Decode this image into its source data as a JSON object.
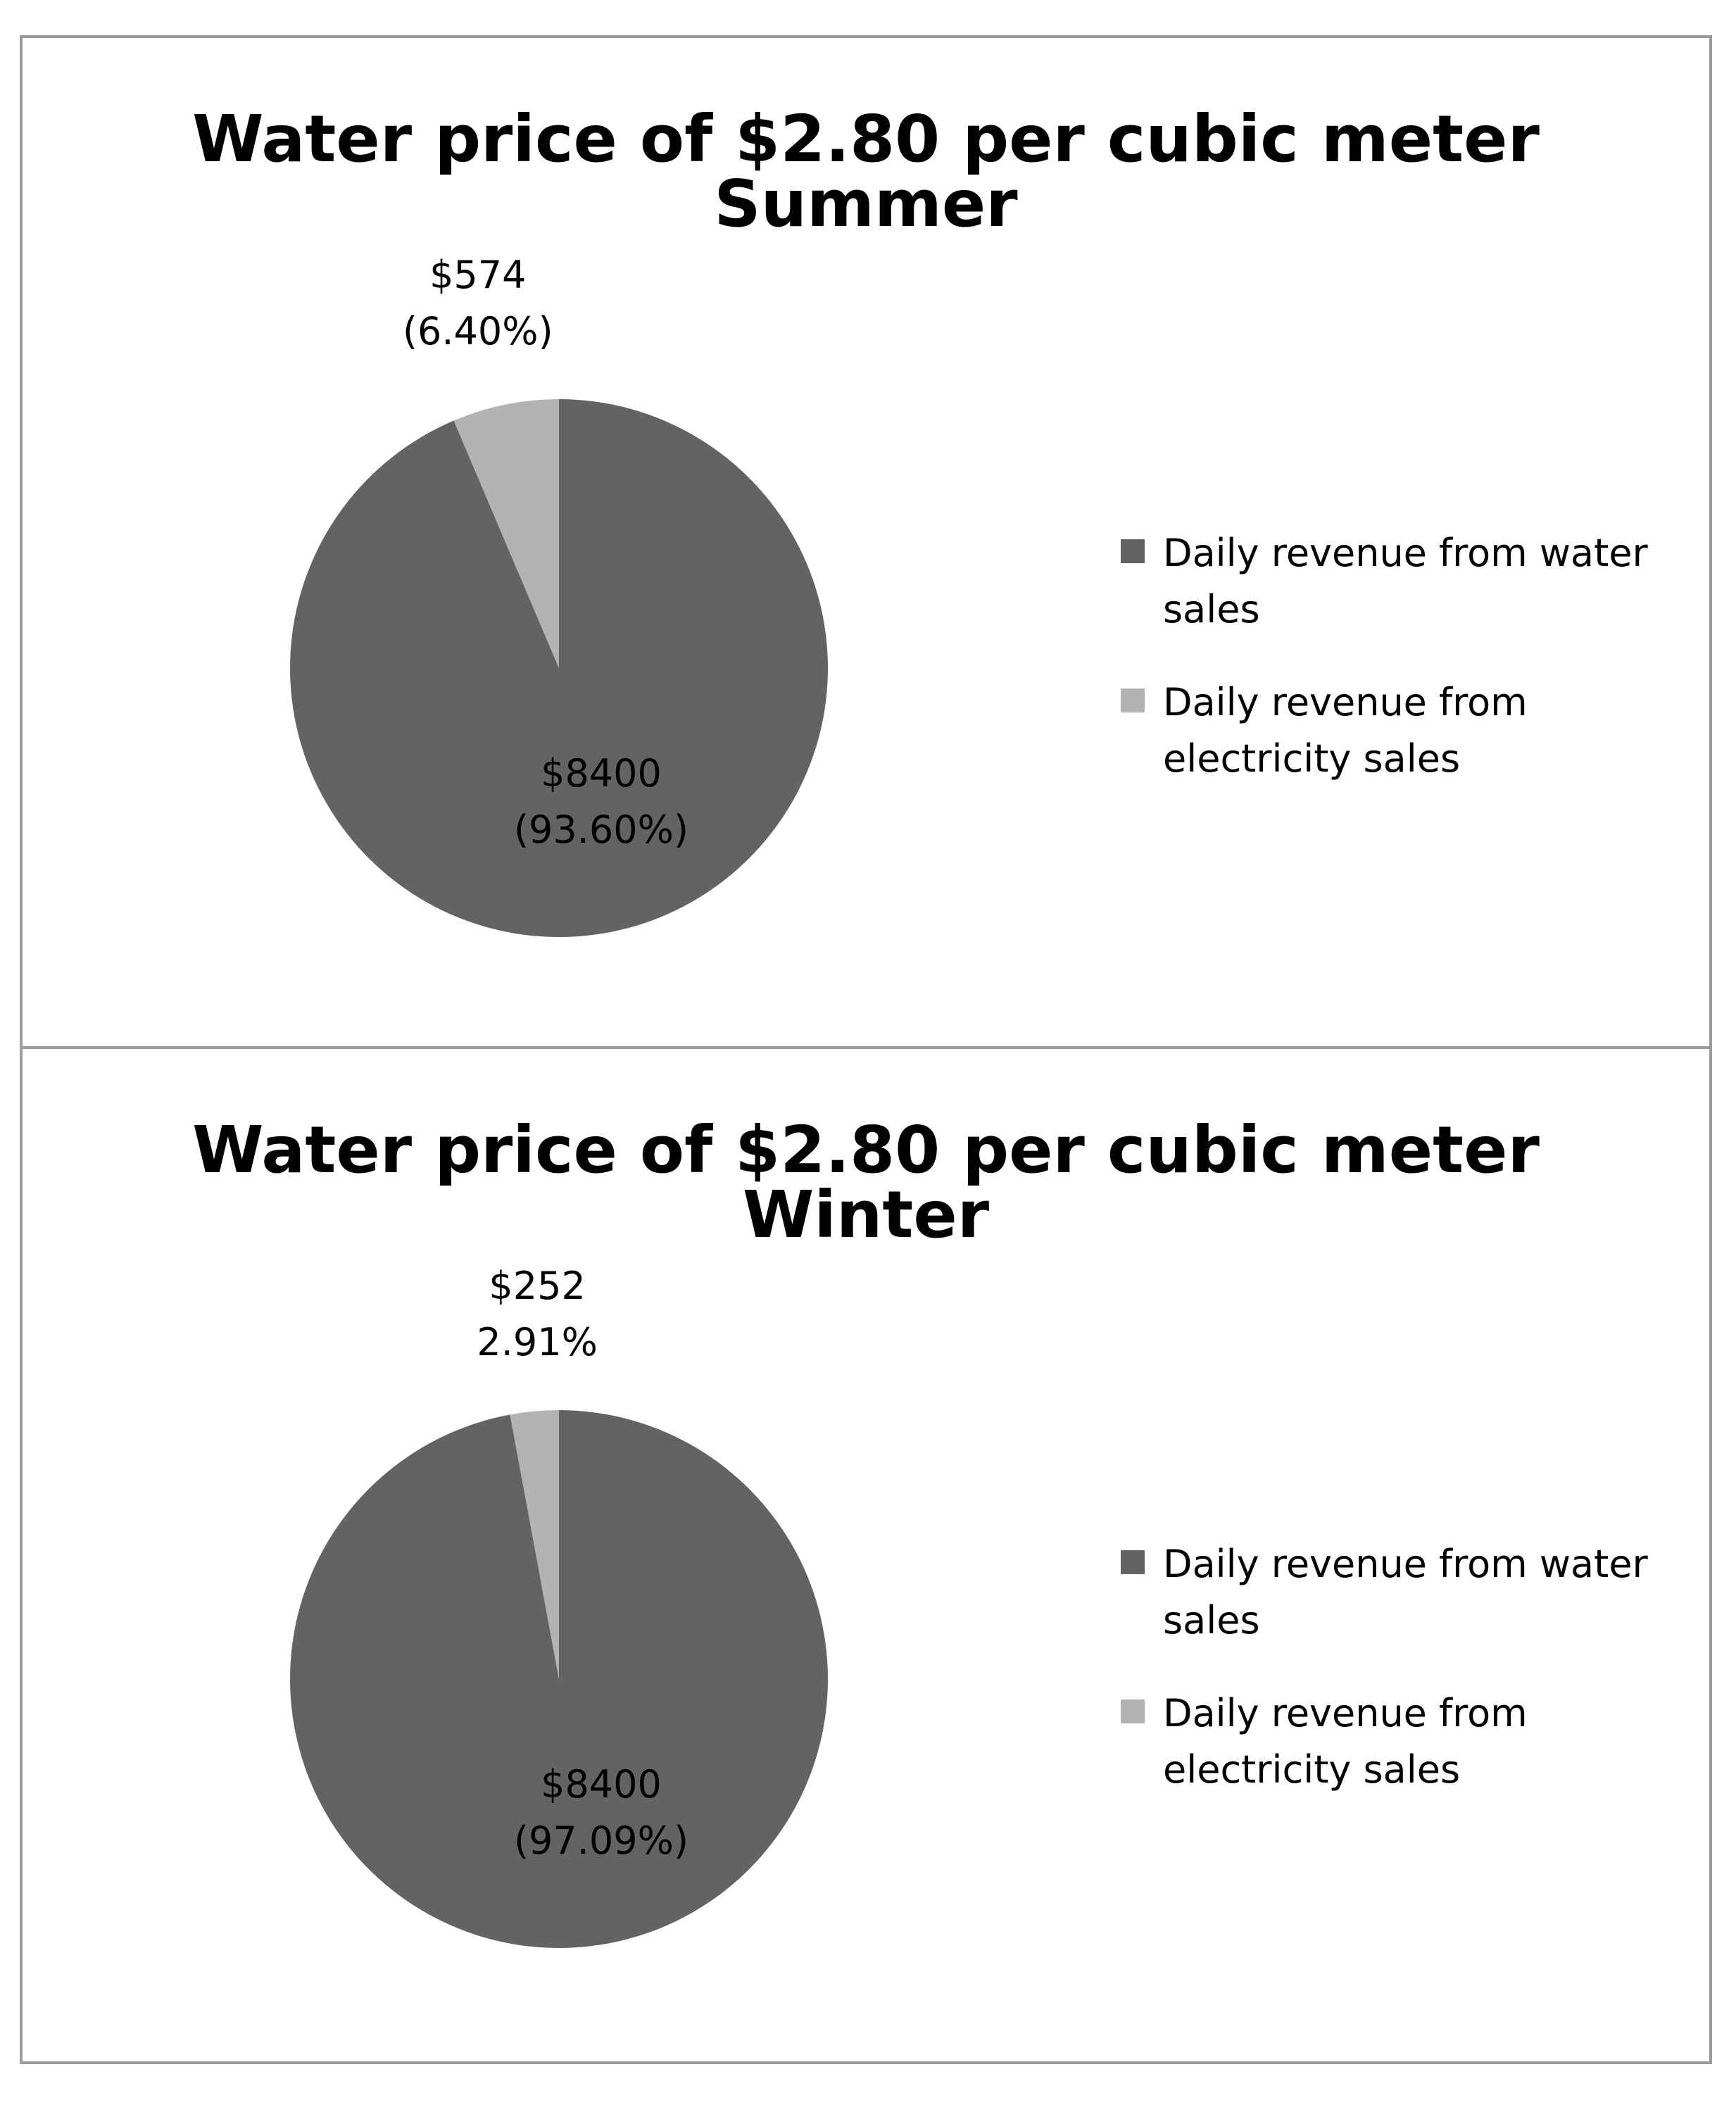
{
  "colors": {
    "water": "#636363",
    "electricity": "#b3b3b3",
    "frame": "#9a9a9a"
  },
  "chart_data": [
    {
      "type": "pie",
      "title": [
        "Water price of $2.80 per cubic meter",
        "Summer"
      ],
      "slices": [
        {
          "name": "Daily revenue from water sales",
          "value": 8400,
          "percent": 93.6,
          "label": [
            "$8400",
            "(93.60%)"
          ],
          "color": "#636363"
        },
        {
          "name": "Daily revenue from electricity sales",
          "value": 574,
          "percent": 6.4,
          "label": [
            "$574",
            "(6.40%)"
          ],
          "color": "#b3b3b3"
        }
      ],
      "legend": {
        "placement": "right",
        "entries": [
          {
            "lines": [
              "Daily revenue from water",
              "sales"
            ],
            "color": "#636363"
          },
          {
            "lines": [
              "Daily revenue from",
              "electricity sales"
            ],
            "color": "#b3b3b3"
          }
        ]
      }
    },
    {
      "type": "pie",
      "title": [
        "Water price of $2.80 per cubic meter",
        "Winter"
      ],
      "slices": [
        {
          "name": "Daily revenue from water sales",
          "value": 8400,
          "percent": 97.09,
          "label": [
            "$8400",
            "(97.09%)"
          ],
          "color": "#636363"
        },
        {
          "name": "Daily revenue from electricity sales",
          "value": 252,
          "percent": 2.91,
          "label": [
            "$252",
            "2.91%"
          ],
          "color": "#b3b3b3"
        }
      ],
      "legend": {
        "placement": "right",
        "entries": [
          {
            "lines": [
              "Daily revenue from water",
              "sales"
            ],
            "color": "#636363"
          },
          {
            "lines": [
              "Daily revenue from",
              "electricity sales"
            ],
            "color": "#b3b3b3"
          }
        ]
      }
    }
  ]
}
